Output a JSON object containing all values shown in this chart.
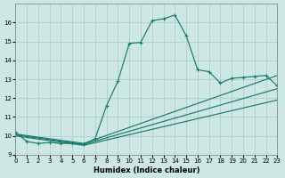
{
  "xlabel": "Humidex (Indice chaleur)",
  "ylabel": "",
  "bg_color": "#cde8e4",
  "grid_color": "#b0d0cc",
  "line_color": "#1a7a6e",
  "xlim": [
    0,
    23
  ],
  "ylim": [
    9,
    17
  ],
  "yticks": [
    9,
    10,
    11,
    12,
    13,
    14,
    15,
    16
  ],
  "xticks": [
    0,
    1,
    2,
    3,
    4,
    5,
    6,
    7,
    8,
    9,
    10,
    11,
    12,
    13,
    14,
    15,
    16,
    17,
    18,
    19,
    20,
    21,
    22,
    23
  ],
  "line1_x": [
    0,
    1,
    2,
    3,
    4,
    5,
    6,
    7,
    8,
    9,
    10,
    11,
    12,
    13,
    14,
    15,
    16,
    17,
    18,
    19,
    20,
    21,
    22,
    23
  ],
  "line1_y": [
    10.2,
    9.7,
    9.6,
    9.65,
    9.6,
    9.6,
    9.55,
    9.85,
    11.6,
    12.9,
    14.9,
    14.95,
    16.1,
    16.2,
    16.4,
    15.3,
    13.5,
    13.4,
    12.8,
    13.05,
    13.1,
    13.15,
    13.2,
    12.65
  ],
  "line2_x": [
    0,
    6,
    23
  ],
  "line2_y": [
    10.1,
    9.6,
    13.2
  ],
  "line3_x": [
    0,
    6,
    23
  ],
  "line3_y": [
    10.05,
    9.55,
    12.5
  ],
  "line4_x": [
    0,
    6,
    23
  ],
  "line4_y": [
    10.0,
    9.5,
    11.9
  ]
}
